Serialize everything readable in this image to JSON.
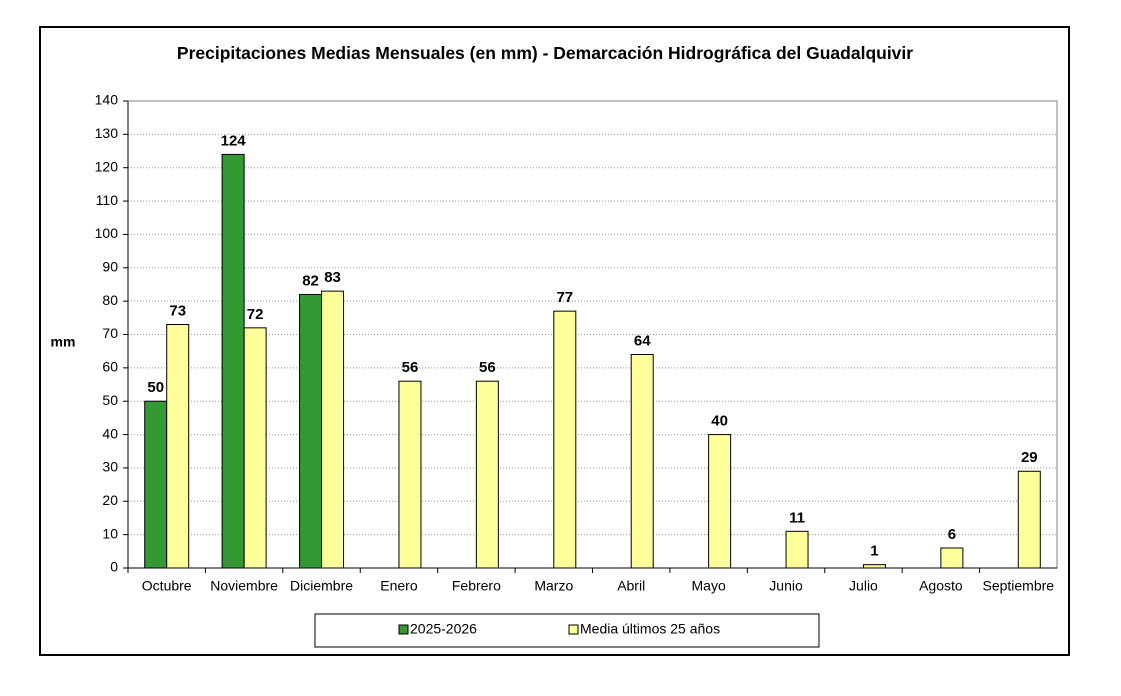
{
  "chart_data": {
    "type": "bar",
    "title": "Precipitaciones Medias Mensuales (en mm) - Demarcación Hidrográfica del Guadalquivir",
    "y_label": "mm",
    "categories": [
      "Octubre",
      "Noviembre",
      "Diciembre",
      "Enero",
      "Febrero",
      "Marzo",
      "Abril",
      "Mayo",
      "Junio",
      "Julio",
      "Agosto",
      "Septiembre"
    ],
    "series": [
      {
        "name": "2025-2026",
        "color": "#339933",
        "values": [
          50,
          124,
          82,
          null,
          null,
          null,
          null,
          null,
          null,
          null,
          null,
          null
        ]
      },
      {
        "name": "Media últimos 25 años",
        "color": "#ffff99",
        "values": [
          73,
          72,
          83,
          56,
          56,
          77,
          64,
          40,
          11,
          1,
          6,
          29
        ]
      }
    ],
    "ylim": [
      0,
      140
    ],
    "yticks": [
      0,
      10,
      20,
      30,
      40,
      50,
      60,
      70,
      80,
      90,
      100,
      110,
      120,
      130,
      140
    ],
    "grid": true,
    "legend": "bottom"
  }
}
